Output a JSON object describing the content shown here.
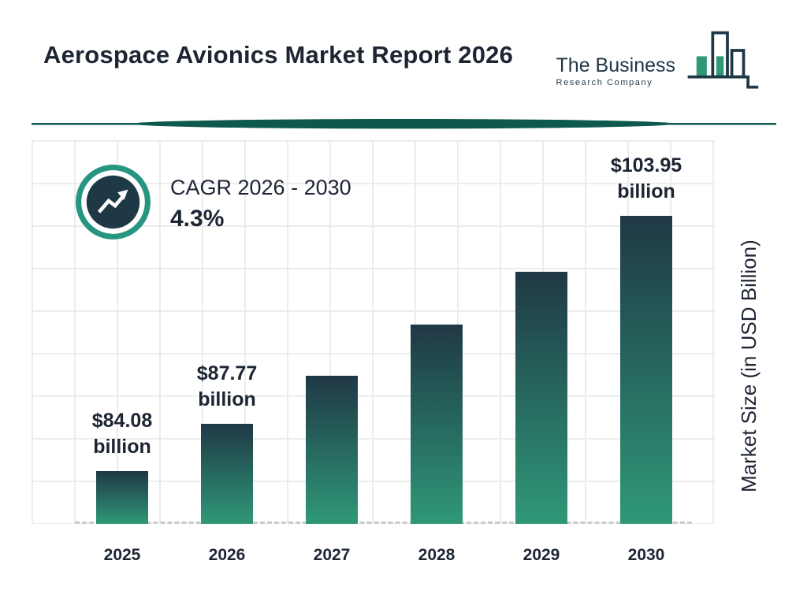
{
  "header": {
    "title": "Aerospace Avionics Market Report 2026",
    "logo": {
      "line1": "The Business",
      "line2": "Research Company"
    }
  },
  "y_axis_label": "Market Size (in USD Billion)",
  "colors": {
    "text_color": "#1d2533",
    "dark_navy": "#1f3845",
    "accent_teal": "#2f9878",
    "ring_teal": "#279680",
    "divider_color": "#0e594d",
    "grid_color": "#ececec"
  },
  "chart_data": {
    "type": "bar",
    "title": "Aerospace Avionics Market Report 2026",
    "categories": [
      "2025",
      "2026",
      "2027",
      "2028",
      "2029",
      "2030"
    ],
    "values": [
      84.08,
      87.77,
      91.5,
      95.5,
      99.6,
      103.95
    ],
    "data_labels": [
      "$84.08 billion",
      "$87.77 billion",
      null,
      null,
      null,
      "$103.95 billion"
    ],
    "xlabel": "",
    "ylabel": "Market Size (in USD Billion)",
    "ylim": [
      80,
      104
    ],
    "grid": true,
    "legend": false,
    "annotation": {
      "label": "CAGR 2026 - 2030",
      "value": "4.3%"
    }
  }
}
